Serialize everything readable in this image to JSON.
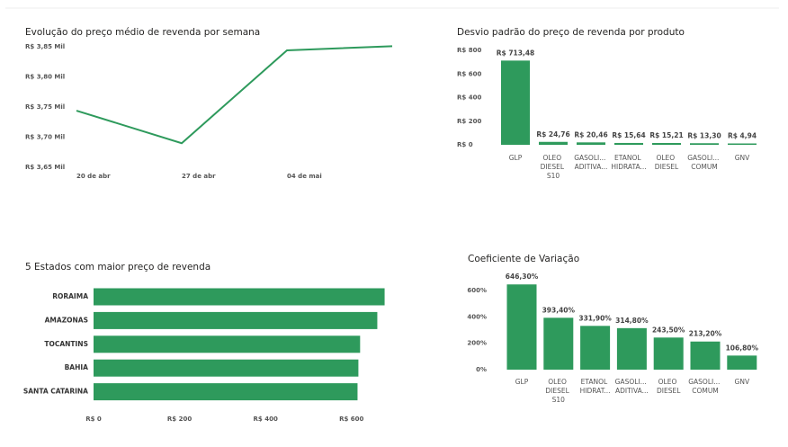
{
  "chart_data": [
    {
      "type": "line",
      "title": "Evolução do preço médio de revenda por semana",
      "x": [
        "20 de abr",
        "27 de abr",
        "04 de mai",
        null
      ],
      "values": [
        3744,
        3690,
        3844,
        3851
      ],
      "color": "#2e9a5c",
      "ylim": [
        3650,
        3850
      ],
      "yticks": [
        {
          "value": 3650,
          "label": "R$ 3,65 Mil"
        },
        {
          "value": 3700,
          "label": "R$ 3,70 Mil"
        },
        {
          "value": 3750,
          "label": "R$ 3,75 Mil"
        },
        {
          "value": 3800,
          "label": "R$ 3,80 Mil"
        },
        {
          "value": 3850,
          "label": "R$ 3,85 Mil"
        }
      ]
    },
    {
      "type": "bar",
      "title": "Desvio padrão do preço de revenda por produto",
      "categories": [
        "GLP",
        "OLEO DIESEL S10",
        "GASOLI... ADITIVA...",
        "ETANOL HIDRATA...",
        "OLEO DIESEL",
        "GASOLI... COMUM",
        "GNV"
      ],
      "values": [
        713.48,
        24.76,
        20.46,
        15.64,
        15.21,
        13.3,
        4.94
      ],
      "value_labels": [
        "R$ 713,48",
        "R$ 24,76",
        "R$ 20,46",
        "R$ 15,64",
        "R$ 15,21",
        "R$ 13,30",
        "R$ 4,94"
      ],
      "color": "#2e9a5c",
      "ylim": [
        0,
        800
      ],
      "yticks": [
        {
          "value": 0,
          "label": "R$ 0"
        },
        {
          "value": 200,
          "label": "R$ 200"
        },
        {
          "value": 400,
          "label": "R$ 400"
        },
        {
          "value": 600,
          "label": "R$ 600"
        },
        {
          "value": 800,
          "label": "R$ 800"
        }
      ]
    },
    {
      "type": "bar",
      "orientation": "horizontal",
      "title": "5 Estados com maior preço de revenda",
      "categories": [
        "RORAIMA",
        "AMAZONAS",
        "TOCANTINS",
        "BAHIA",
        "SANTA CATARINA"
      ],
      "values": [
        677,
        660,
        620,
        616,
        614
      ],
      "color": "#2e9a5c",
      "xlim": [
        0,
        680
      ],
      "xticks": [
        {
          "value": 0,
          "label": "R$ 0"
        },
        {
          "value": 200,
          "label": "R$ 200"
        },
        {
          "value": 400,
          "label": "R$ 400"
        },
        {
          "value": 600,
          "label": "R$ 600"
        }
      ]
    },
    {
      "type": "bar",
      "title": "Coeficiente de Variação",
      "categories": [
        "GLP",
        "OLEO DIESEL S10",
        "ETANOL HIDRAT...",
        "GASOLI... ADITIVA...",
        "OLEO DIESEL",
        "GASOLI... COMUM",
        "GNV"
      ],
      "values": [
        646.3,
        393.4,
        331.9,
        314.8,
        243.5,
        213.2,
        106.8
      ],
      "value_labels": [
        "646,30%",
        "393,40%",
        "331,90%",
        "314,80%",
        "243,50%",
        "213,20%",
        "106,80%"
      ],
      "color": "#2e9a5c",
      "ylim": [
        0,
        650
      ],
      "yticks": [
        {
          "value": 0,
          "label": "0%"
        },
        {
          "value": 200,
          "label": "200%"
        },
        {
          "value": 400,
          "label": "400%"
        },
        {
          "value": 600,
          "label": "600%"
        }
      ]
    }
  ]
}
